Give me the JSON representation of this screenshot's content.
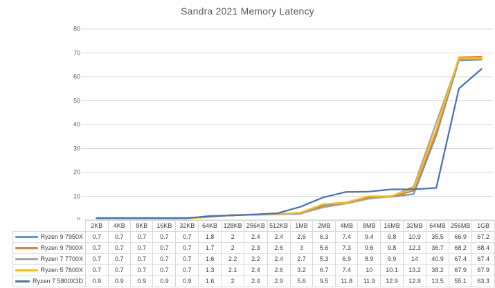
{
  "chart_data": {
    "type": "line",
    "title": "Sandra 2021 Memory Latency",
    "categories": [
      "2KB",
      "4KB",
      "8KB",
      "16KB",
      "32KB",
      "64KB",
      "128KB",
      "256KB",
      "512KB",
      "1MB",
      "2MB",
      "4MB",
      "8MB",
      "16MB",
      "32MB",
      "64MB",
      "256MB",
      "1GB"
    ],
    "series": [
      {
        "name": "Ryzen 9 7950X",
        "color": "#5B9BD5",
        "values": [
          0.7,
          0.7,
          0.7,
          0.7,
          0.7,
          1.8,
          2,
          2.4,
          2.4,
          2.6,
          6.3,
          7.4,
          9.4,
          9.8,
          10.9,
          35.5,
          66.9,
          67.2
        ]
      },
      {
        "name": "Ryzen 9 7900X",
        "color": "#ED7D31",
        "values": [
          0.7,
          0.7,
          0.7,
          0.7,
          0.7,
          1.7,
          2,
          2.3,
          2.6,
          3,
          5.6,
          7.3,
          9.6,
          9.8,
          12.3,
          36.7,
          68.2,
          68.4
        ]
      },
      {
        "name": "Ryzen 7 7700X",
        "color": "#A5A5A5",
        "values": [
          0.7,
          0.7,
          0.7,
          0.7,
          0.7,
          1.6,
          2.2,
          2.2,
          2.4,
          2.7,
          5.3,
          6.9,
          8.9,
          9.9,
          14,
          40.9,
          67.4,
          67.4
        ]
      },
      {
        "name": "Ryzen 5 7600X",
        "color": "#FFC000",
        "values": [
          0.7,
          0.7,
          0.7,
          0.7,
          0.7,
          1.3,
          2.1,
          2.4,
          2.6,
          3.2,
          6.7,
          7.4,
          10,
          10.1,
          13.2,
          38.2,
          67.9,
          67.9
        ]
      },
      {
        "name": "Ryzen 7 5800X3D",
        "color": "#4472C4",
        "values": [
          0.9,
          0.9,
          0.9,
          0.9,
          0.9,
          1.6,
          2,
          2.4,
          2.9,
          5.6,
          9.5,
          11.8,
          11.9,
          12.9,
          12.9,
          13.5,
          55.1,
          63.3
        ]
      }
    ],
    "ylim": [
      0,
      80
    ],
    "yticks": [
      0,
      10,
      20,
      30,
      40,
      50,
      60,
      70,
      80
    ],
    "grid": true,
    "legend_position": "data-table-left",
    "data_table": true
  },
  "colors": {
    "gridline": "#D9D9D9",
    "axis_line": "#BFBFBF",
    "axis_text": "#595959",
    "table_border": "#D9D9D9",
    "table_text": "#404040",
    "title_text": "#595959"
  }
}
